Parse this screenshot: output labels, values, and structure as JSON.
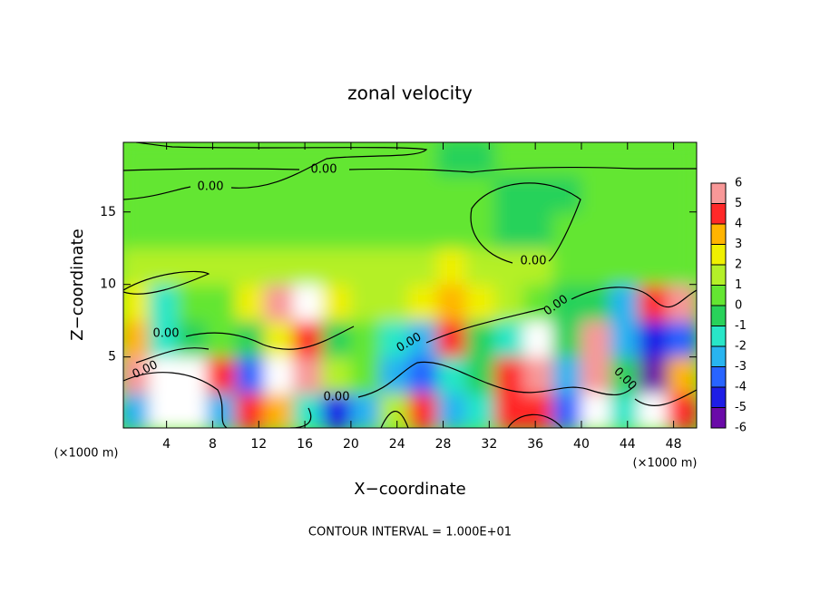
{
  "chart_data": {
    "type": "heatmap",
    "title": "zonal velocity",
    "xlabel": "X−coordinate",
    "ylabel": "Z−coordinate",
    "x_unit": "(×1000 m)",
    "footer": "CONTOUR INTERVAL = 1.000E+01",
    "contour_labels": [
      "0.00",
      "0.00",
      "0.00",
      "0.00",
      "0.00",
      "0.00",
      "0.00",
      "0.00",
      "0.00"
    ],
    "xlim": [
      0.25,
      50
    ],
    "ylim": [
      0.1,
      19.8
    ],
    "xticks": [
      4,
      8,
      12,
      16,
      20,
      24,
      28,
      32,
      36,
      40,
      44,
      48
    ],
    "yticks": [
      5,
      10,
      15
    ],
    "clim": [
      -6,
      6
    ],
    "cticks": [
      6,
      5,
      4,
      3,
      2,
      1,
      0,
      -1,
      -2,
      -3,
      -4,
      -5,
      -6
    ],
    "colors": [
      "#6a0aa8",
      "#1e1ee6",
      "#2864ff",
      "#28b4f0",
      "#28e6c8",
      "#28d25a",
      "#64e632",
      "#b4f028",
      "#f0f000",
      "#ffb400",
      "#ff2828",
      "#f89898"
    ],
    "x": [
      1.25,
      3.75,
      6.25,
      8.75,
      11.25,
      13.75,
      16.25,
      18.75,
      21.25,
      23.75,
      26.25,
      28.75,
      31.25,
      33.75,
      36.25,
      38.75,
      41.25,
      43.75,
      46.25,
      48.75
    ],
    "y": [
      1.25,
      3.75,
      6.25,
      8.75,
      11.25,
      13.75,
      16.25,
      18.75
    ],
    "z": [
      [
        -3,
        -7,
        -7,
        -3,
        4,
        3,
        -2,
        -5,
        -3,
        1,
        4,
        -3,
        -2,
        4,
        4,
        -4,
        -7,
        -2,
        7,
        4
      ],
      [
        5,
        7,
        7,
        4,
        -4,
        -7,
        5,
        1,
        0.5,
        -3,
        -4,
        -2,
        -1,
        4,
        5,
        -3,
        5,
        -1,
        -6,
        3
      ],
      [
        3,
        -2,
        -1,
        0.5,
        -1,
        2,
        4,
        -0.5,
        0.5,
        -2,
        -3,
        4,
        -1,
        -2,
        -7,
        -1,
        6,
        -3,
        -5,
        -4
      ],
      [
        2,
        -2,
        0.5,
        0.5,
        2,
        5,
        7,
        2,
        1,
        1,
        2,
        3,
        2,
        1,
        0.5,
        -1,
        -1,
        -3,
        4,
        5
      ],
      [
        1.5,
        1,
        1,
        1,
        1.5,
        1.5,
        1,
        1,
        1,
        1,
        1.5,
        2,
        1.5,
        1,
        1,
        0.5,
        0.5,
        0.5,
        0.5,
        0.5
      ],
      [
        0.8,
        0.8,
        0.8,
        0.8,
        0.8,
        0.8,
        0.8,
        0.8,
        0.8,
        0.8,
        0.7,
        0.5,
        0.3,
        -0.3,
        -0.3,
        0.2,
        0.5,
        0.6,
        0.6,
        0.6
      ],
      [
        0.5,
        0.5,
        0.5,
        0.6,
        0.6,
        0.6,
        0.6,
        0.6,
        0.6,
        0.6,
        0.5,
        0.5,
        0.3,
        -0.3,
        -0.5,
        -0.3,
        0.3,
        0.5,
        0.5,
        0.5
      ],
      [
        0.5,
        0.5,
        0.6,
        0.4,
        0.3,
        0.4,
        0.5,
        0.5,
        0.4,
        0.2,
        0.1,
        -0.2,
        -0.2,
        0.1,
        0.3,
        0.5,
        0.5,
        0.5,
        0.5,
        0.5
      ]
    ]
  }
}
